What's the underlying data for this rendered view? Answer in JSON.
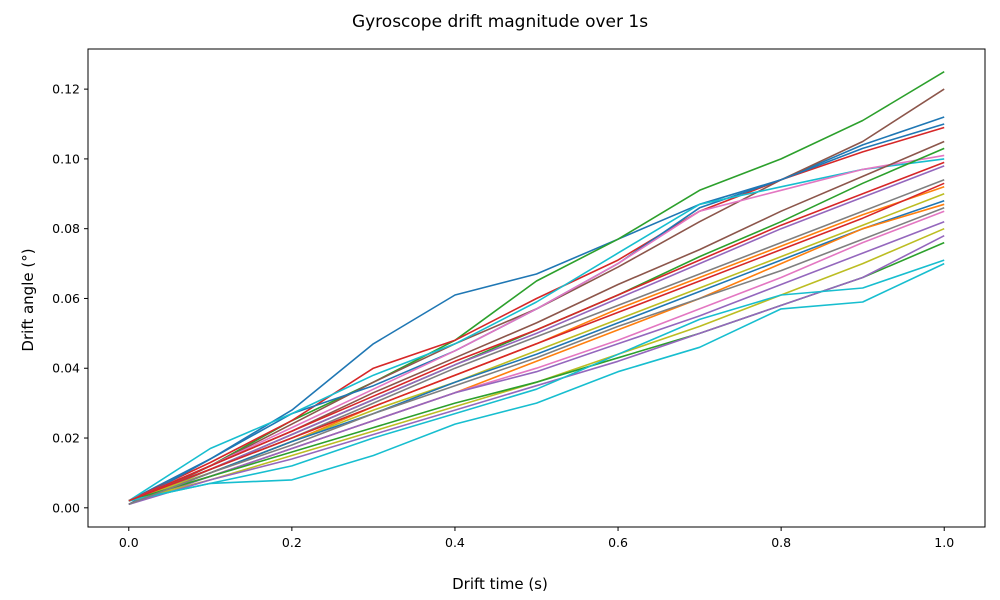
{
  "chart_data": {
    "type": "line",
    "title": "Gyroscope drift magnitude over 1s",
    "xlabel": "Drift time (s)",
    "ylabel": "Drift angle (°)",
    "xlim": [
      -0.05,
      1.05
    ],
    "ylim": [
      -0.0055,
      0.1315
    ],
    "xticks": [
      0.0,
      0.2,
      0.4,
      0.6,
      0.8,
      1.0
    ],
    "xtick_labels": [
      "0.0",
      "0.2",
      "0.4",
      "0.6",
      "0.8",
      "1.0"
    ],
    "yticks": [
      0.0,
      0.02,
      0.04,
      0.06,
      0.08,
      0.1,
      0.12
    ],
    "ytick_labels": [
      "0.00",
      "0.02",
      "0.04",
      "0.06",
      "0.08",
      "0.10",
      "0.12"
    ],
    "grid": false,
    "legend": "none",
    "series": [
      {
        "color": "#1f77b4",
        "x": [
          0,
          0.1,
          0.2,
          0.3,
          0.4,
          0.5,
          0.6,
          0.7,
          0.8,
          0.9,
          1.0
        ],
        "y": [
          0.002,
          0.014,
          0.028,
          0.047,
          0.061,
          0.067,
          0.077,
          0.087,
          0.094,
          0.104,
          0.112
        ]
      },
      {
        "color": "#2ca02c",
        "x": [
          0,
          0.1,
          0.2,
          0.3,
          0.4,
          0.5,
          0.6,
          0.7,
          0.8,
          0.9,
          1.0
        ],
        "y": [
          0.002,
          0.012,
          0.025,
          0.036,
          0.048,
          0.065,
          0.077,
          0.091,
          0.1,
          0.111,
          0.125
        ]
      },
      {
        "color": "#8c564b",
        "x": [
          0,
          0.1,
          0.2,
          0.3,
          0.4,
          0.5,
          0.6,
          0.7,
          0.8,
          0.9,
          1.0
        ],
        "y": [
          0.001,
          0.012,
          0.024,
          0.036,
          0.047,
          0.057,
          0.069,
          0.082,
          0.094,
          0.105,
          0.12
        ]
      },
      {
        "color": "#d62728",
        "x": [
          0,
          0.1,
          0.2,
          0.3,
          0.4,
          0.5,
          0.6,
          0.7,
          0.8,
          0.9,
          1.0
        ],
        "y": [
          0.002,
          0.013,
          0.025,
          0.04,
          0.048,
          0.06,
          0.071,
          0.085,
          0.094,
          0.102,
          0.109
        ]
      },
      {
        "color": "#1f77b4",
        "x": [
          0,
          0.1,
          0.2,
          0.3,
          0.4,
          0.5,
          0.6,
          0.7,
          0.8,
          0.9,
          1.0
        ],
        "y": [
          0.001,
          0.014,
          0.027,
          0.035,
          0.045,
          0.057,
          0.07,
          0.086,
          0.094,
          0.103,
          0.11
        ]
      },
      {
        "color": "#17becf",
        "x": [
          0,
          0.1,
          0.2,
          0.3,
          0.4,
          0.5,
          0.6,
          0.7,
          0.8,
          0.9,
          1.0
        ],
        "y": [
          0.002,
          0.017,
          0.027,
          0.038,
          0.047,
          0.059,
          0.073,
          0.087,
          0.092,
          0.097,
          0.1
        ]
      },
      {
        "color": "#e377c2",
        "x": [
          0,
          0.1,
          0.2,
          0.3,
          0.4,
          0.5,
          0.6,
          0.7,
          0.8,
          0.9,
          1.0
        ],
        "y": [
          0.002,
          0.012,
          0.023,
          0.034,
          0.045,
          0.057,
          0.07,
          0.085,
          0.091,
          0.097,
          0.101
        ]
      },
      {
        "color": "#8c564b",
        "x": [
          0,
          0.1,
          0.2,
          0.3,
          0.4,
          0.5,
          0.6,
          0.7,
          0.8,
          0.9,
          1.0
        ],
        "y": [
          0.001,
          0.012,
          0.022,
          0.033,
          0.043,
          0.053,
          0.064,
          0.074,
          0.085,
          0.095,
          0.105
        ]
      },
      {
        "color": "#2ca02c",
        "x": [
          0,
          0.1,
          0.2,
          0.3,
          0.4,
          0.5,
          0.6,
          0.7,
          0.8,
          0.9,
          1.0
        ],
        "y": [
          0.002,
          0.011,
          0.021,
          0.031,
          0.041,
          0.051,
          0.061,
          0.072,
          0.082,
          0.093,
          0.103
        ]
      },
      {
        "color": "#d62728",
        "x": [
          0,
          0.1,
          0.2,
          0.3,
          0.4,
          0.5,
          0.6,
          0.7,
          0.8,
          0.9,
          1.0
        ],
        "y": [
          0.002,
          0.012,
          0.022,
          0.032,
          0.042,
          0.051,
          0.061,
          0.071,
          0.081,
          0.09,
          0.099
        ]
      },
      {
        "color": "#9467bd",
        "x": [
          0,
          0.1,
          0.2,
          0.3,
          0.4,
          0.5,
          0.6,
          0.7,
          0.8,
          0.9,
          1.0
        ],
        "y": [
          0.002,
          0.011,
          0.021,
          0.031,
          0.041,
          0.05,
          0.06,
          0.07,
          0.08,
          0.089,
          0.098
        ]
      },
      {
        "color": "#7f7f7f",
        "x": [
          0,
          0.1,
          0.2,
          0.3,
          0.4,
          0.5,
          0.6,
          0.7,
          0.8,
          0.9,
          1.0
        ],
        "y": [
          0.001,
          0.011,
          0.02,
          0.03,
          0.04,
          0.049,
          0.058,
          0.067,
          0.076,
          0.085,
          0.094
        ]
      },
      {
        "color": "#ff7f0e",
        "x": [
          0,
          0.1,
          0.2,
          0.3,
          0.4,
          0.5,
          0.6,
          0.7,
          0.8,
          0.9,
          1.0
        ],
        "y": [
          0.002,
          0.01,
          0.019,
          0.029,
          0.038,
          0.047,
          0.057,
          0.066,
          0.075,
          0.084,
          0.092
        ]
      },
      {
        "color": "#bcbd22",
        "x": [
          0,
          0.1,
          0.2,
          0.3,
          0.4,
          0.5,
          0.6,
          0.7,
          0.8,
          0.9,
          1.0
        ],
        "y": [
          0.002,
          0.01,
          0.019,
          0.028,
          0.036,
          0.045,
          0.054,
          0.063,
          0.072,
          0.081,
          0.09
        ]
      },
      {
        "color": "#1f77b4",
        "x": [
          0,
          0.1,
          0.2,
          0.3,
          0.4,
          0.5,
          0.6,
          0.7,
          0.8,
          0.9,
          1.0
        ],
        "y": [
          0.001,
          0.01,
          0.019,
          0.027,
          0.036,
          0.044,
          0.053,
          0.062,
          0.071,
          0.08,
          0.088
        ]
      },
      {
        "color": "#ff7f0e",
        "x": [
          0,
          0.1,
          0.2,
          0.3,
          0.4,
          0.5,
          0.6,
          0.7,
          0.8,
          0.9,
          1.0
        ],
        "y": [
          0.002,
          0.009,
          0.017,
          0.025,
          0.033,
          0.042,
          0.051,
          0.06,
          0.07,
          0.08,
          0.087
        ]
      },
      {
        "color": "#e377c2",
        "x": [
          0,
          0.1,
          0.2,
          0.3,
          0.4,
          0.5,
          0.6,
          0.7,
          0.8,
          0.9,
          1.0
        ],
        "y": [
          0.002,
          0.009,
          0.017,
          0.025,
          0.033,
          0.04,
          0.048,
          0.057,
          0.066,
          0.076,
          0.085
        ]
      },
      {
        "color": "#9467bd",
        "x": [
          0,
          0.1,
          0.2,
          0.3,
          0.4,
          0.5,
          0.6,
          0.7,
          0.8,
          0.9,
          1.0
        ],
        "y": [
          0.001,
          0.009,
          0.017,
          0.025,
          0.033,
          0.039,
          0.047,
          0.055,
          0.064,
          0.073,
          0.082
        ]
      },
      {
        "color": "#bcbd22",
        "x": [
          0,
          0.1,
          0.2,
          0.3,
          0.4,
          0.5,
          0.6,
          0.7,
          0.8,
          0.9,
          1.0
        ],
        "y": [
          0.002,
          0.008,
          0.015,
          0.022,
          0.029,
          0.036,
          0.044,
          0.052,
          0.061,
          0.07,
          0.08
        ]
      },
      {
        "color": "#2ca02c",
        "x": [
          0,
          0.1,
          0.2,
          0.3,
          0.4,
          0.5,
          0.6,
          0.7,
          0.8,
          0.9,
          1.0
        ],
        "y": [
          0.002,
          0.009,
          0.016,
          0.023,
          0.03,
          0.036,
          0.043,
          0.05,
          0.058,
          0.066,
          0.076
        ]
      },
      {
        "color": "#9467bd",
        "x": [
          0,
          0.1,
          0.2,
          0.3,
          0.4,
          0.5,
          0.6,
          0.7,
          0.8,
          0.9,
          1.0
        ],
        "y": [
          0.001,
          0.008,
          0.014,
          0.021,
          0.028,
          0.035,
          0.042,
          0.05,
          0.058,
          0.066,
          0.078
        ]
      },
      {
        "color": "#17becf",
        "x": [
          0,
          0.1,
          0.2,
          0.3,
          0.4,
          0.5,
          0.6,
          0.7,
          0.8,
          0.9,
          1.0
        ],
        "y": [
          0.002,
          0.007,
          0.012,
          0.02,
          0.027,
          0.034,
          0.044,
          0.054,
          0.061,
          0.063,
          0.071
        ]
      },
      {
        "color": "#17becf",
        "x": [
          0,
          0.1,
          0.2,
          0.3,
          0.4,
          0.5,
          0.6,
          0.7,
          0.8,
          0.9,
          1.0
        ],
        "y": [
          0.002,
          0.007,
          0.008,
          0.015,
          0.024,
          0.03,
          0.039,
          0.046,
          0.057,
          0.059,
          0.07
        ]
      },
      {
        "color": "#7f7f7f",
        "x": [
          0,
          0.1,
          0.2,
          0.3,
          0.4,
          0.5,
          0.6,
          0.7,
          0.8,
          0.9,
          1.0
        ],
        "y": [
          0.001,
          0.01,
          0.018,
          0.027,
          0.035,
          0.043,
          0.052,
          0.06,
          0.068,
          0.077,
          0.086
        ]
      },
      {
        "color": "#d62728",
        "x": [
          0,
          0.1,
          0.2,
          0.3,
          0.4,
          0.5,
          0.6,
          0.7,
          0.8,
          0.9,
          1.0
        ],
        "y": [
          0.002,
          0.011,
          0.02,
          0.029,
          0.038,
          0.047,
          0.056,
          0.065,
          0.074,
          0.083,
          0.093
        ]
      }
    ]
  }
}
